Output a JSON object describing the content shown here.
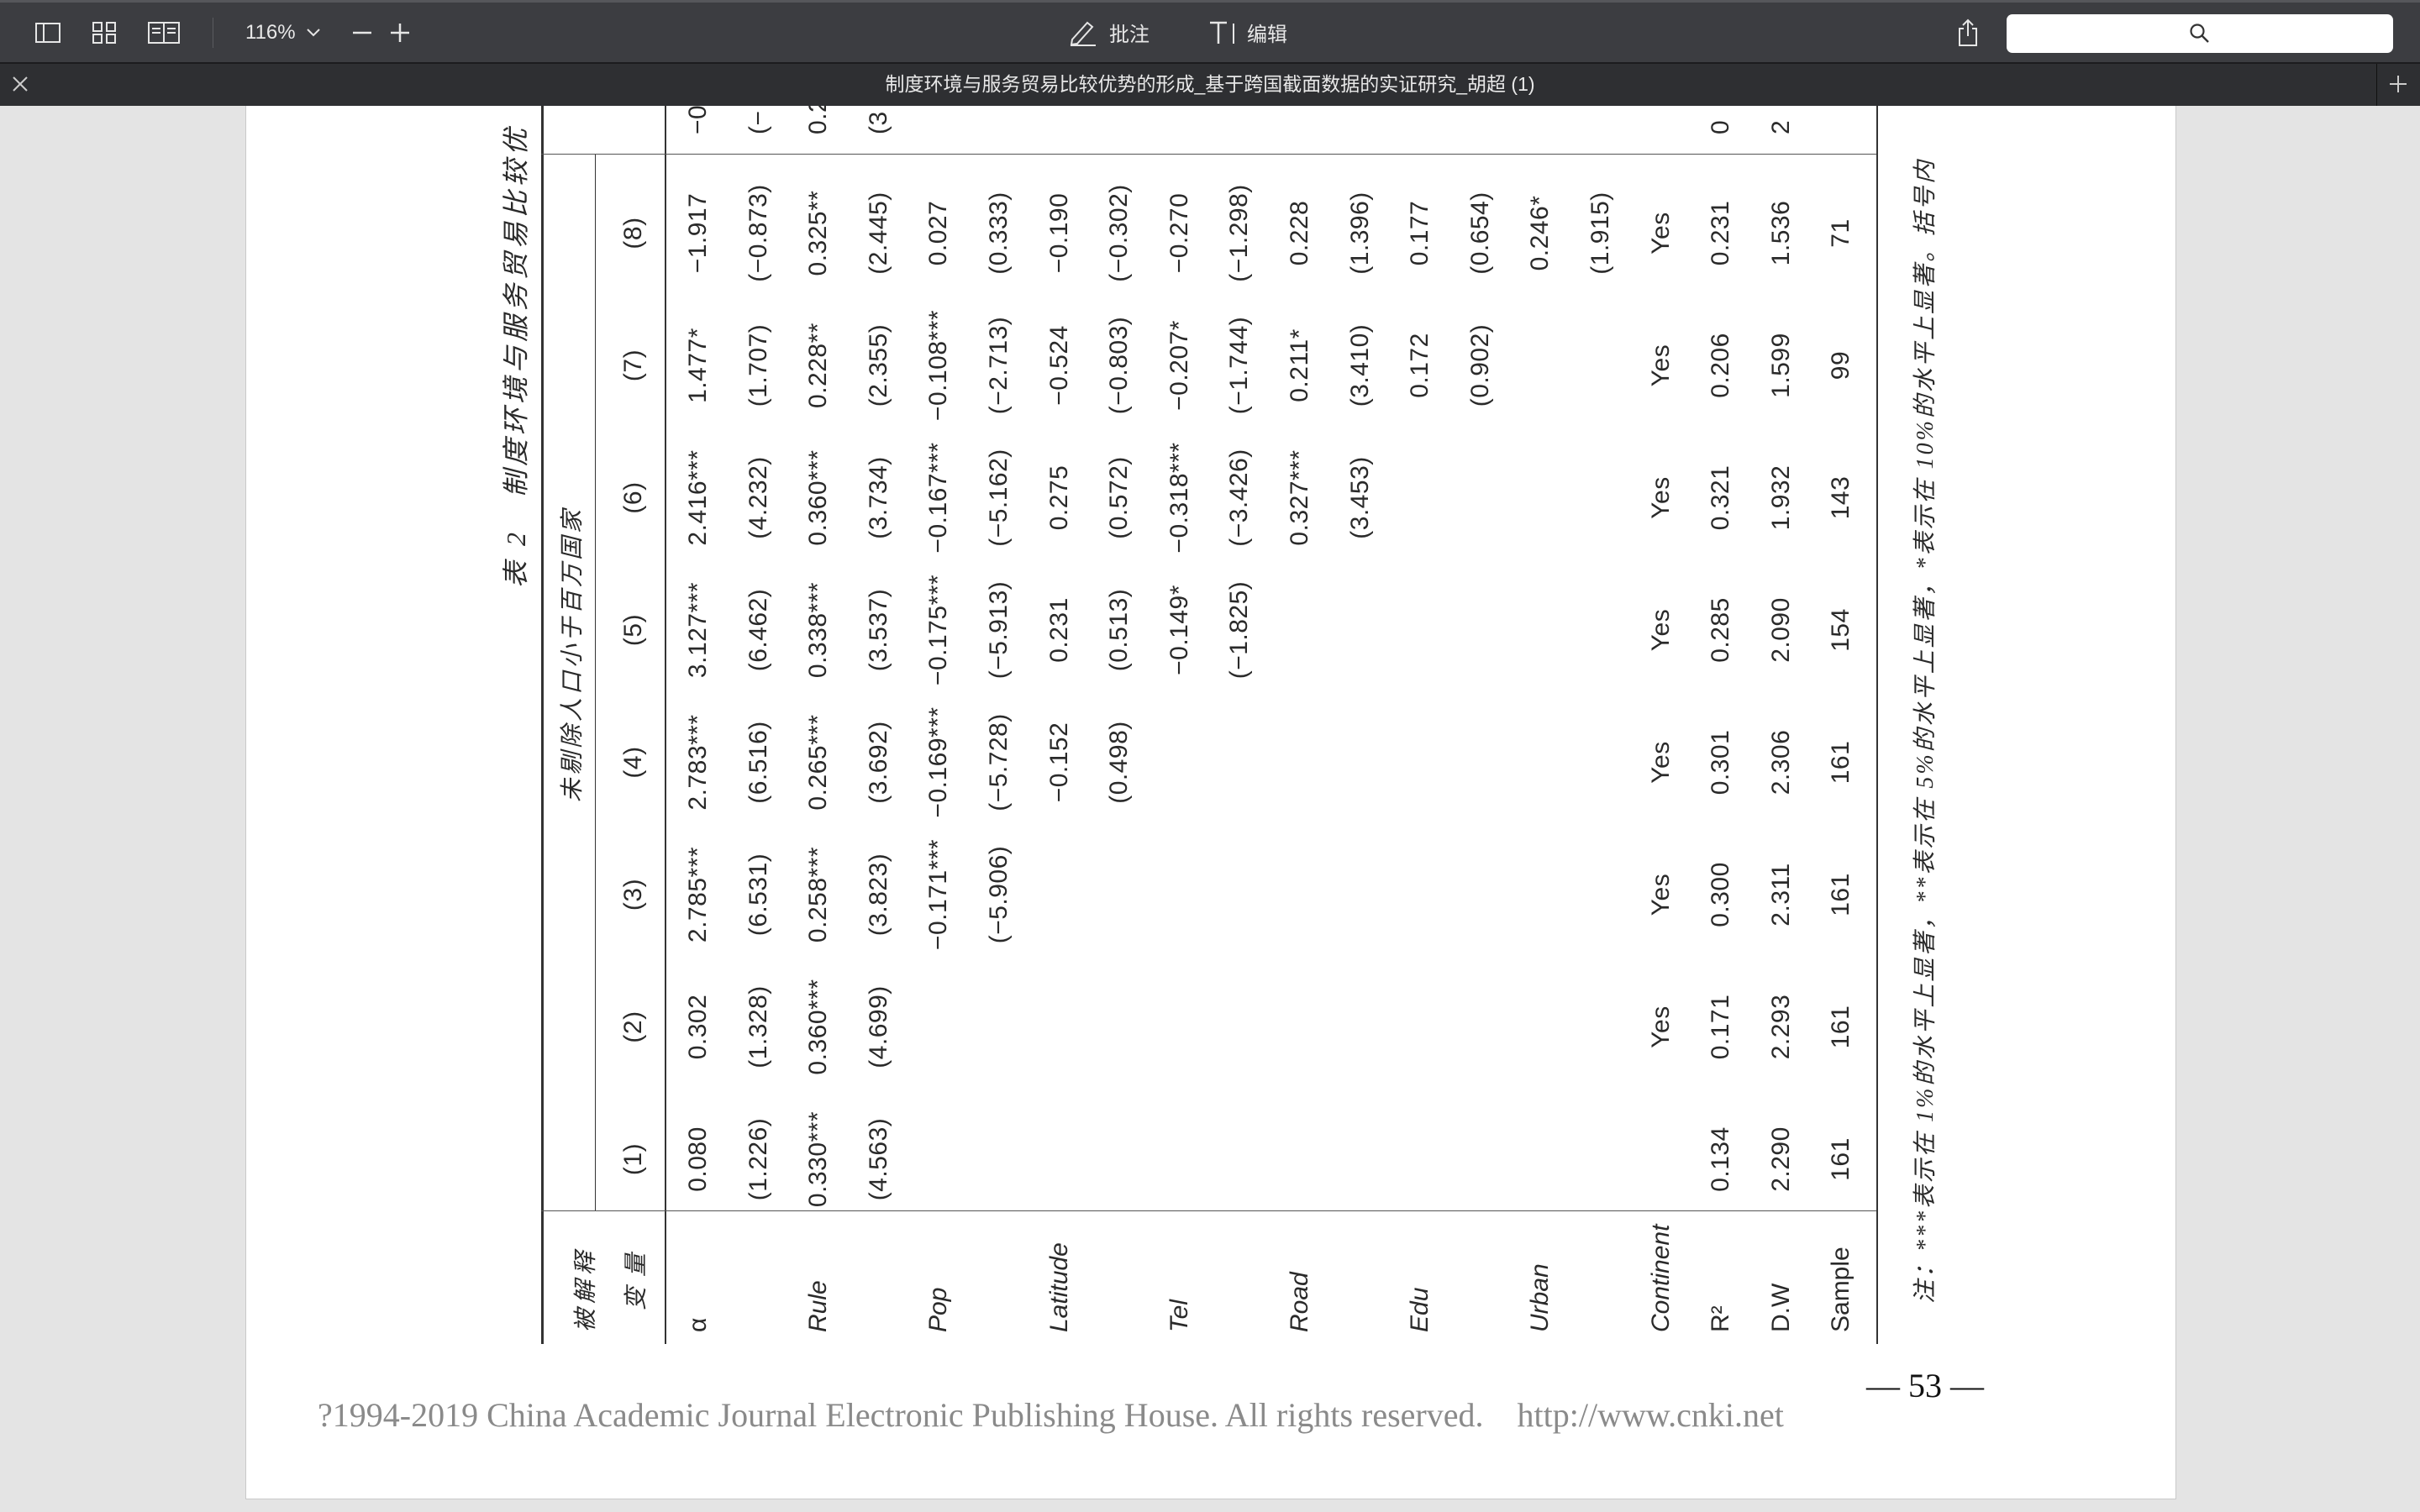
{
  "toolbar": {
    "zoom_level": "116%",
    "annotate_label": "批注",
    "edit_label": "编辑",
    "search_placeholder": ""
  },
  "tab": {
    "title": "制度环境与服务贸易比较优势的形成_基于跨国截面数据的实证研究_胡超 (1)"
  },
  "document": {
    "table_title": "表 2　制度环境与服务贸易比较优",
    "subheader": "未剔除人口小于百万国家",
    "label_header_line1": "被解释",
    "label_header_line2": "变量",
    "columns": [
      "(1)",
      "(2)",
      "(3)",
      "(4)",
      "(5)",
      "(6)",
      "(7)",
      "(8)"
    ],
    "rows": [
      {
        "label": "α",
        "italic": false,
        "cells": [
          "0.080",
          "0.302",
          "2.785***",
          "2.783***",
          "3.127***",
          "2.416***",
          "1.477*",
          "−1.917"
        ]
      },
      {
        "label": "",
        "italic": false,
        "cells": [
          "(1.226)",
          "(1.328)",
          "(6.531)",
          "(6.516)",
          "(6.462)",
          "(4.232)",
          "(1.707)",
          "(−0.873)"
        ]
      },
      {
        "label": "Rule",
        "italic": true,
        "cells": [
          "0.330***",
          "0.360***",
          "0.258***",
          "0.265***",
          "0.338***",
          "0.360***",
          "0.228**",
          "0.325**"
        ]
      },
      {
        "label": "",
        "italic": false,
        "cells": [
          "(4.563)",
          "(4.699)",
          "(3.823)",
          "(3.692)",
          "(3.537)",
          "(3.734)",
          "(2.355)",
          "(2.445)"
        ]
      },
      {
        "label": "Pop",
        "italic": true,
        "cells": [
          "",
          "",
          "−0.171***",
          "−0.169***",
          "−0.175***",
          "−0.167***",
          "−0.108***",
          "0.027"
        ]
      },
      {
        "label": "",
        "italic": false,
        "cells": [
          "",
          "",
          "(−5.906)",
          "(−5.728)",
          "(−5.913)",
          "(−5.162)",
          "(−2.713)",
          "(0.333)"
        ]
      },
      {
        "label": "Latitude",
        "italic": true,
        "cells": [
          "",
          "",
          "",
          "−0.152",
          "0.231",
          "0.275",
          "−0.524",
          "−0.190"
        ]
      },
      {
        "label": "",
        "italic": false,
        "cells": [
          "",
          "",
          "",
          "(0.498)",
          "(0.513)",
          "(0.572)",
          "(−0.803)",
          "(−0.302)"
        ]
      },
      {
        "label": "Tel",
        "italic": true,
        "cells": [
          "",
          "",
          "",
          "",
          "−0.149*",
          "−0.318***",
          "−0.207*",
          "−0.270"
        ]
      },
      {
        "label": "",
        "italic": false,
        "cells": [
          "",
          "",
          "",
          "",
          "(−1.825)",
          "(−3.426)",
          "(−1.744)",
          "(−1.298)"
        ]
      },
      {
        "label": "Road",
        "italic": true,
        "cells": [
          "",
          "",
          "",
          "",
          "",
          "0.327***",
          "0.211*",
          "0.228"
        ]
      },
      {
        "label": "",
        "italic": false,
        "cells": [
          "",
          "",
          "",
          "",
          "",
          "(3.453)",
          "(3.410)",
          "(1.396)"
        ]
      },
      {
        "label": "Edu",
        "italic": true,
        "cells": [
          "",
          "",
          "",
          "",
          "",
          "",
          "0.172",
          "0.177"
        ]
      },
      {
        "label": "",
        "italic": false,
        "cells": [
          "",
          "",
          "",
          "",
          "",
          "",
          "(0.902)",
          "(0.654)"
        ]
      },
      {
        "label": "Urban",
        "italic": true,
        "cells": [
          "",
          "",
          "",
          "",
          "",
          "",
          "",
          "0.246*"
        ]
      },
      {
        "label": "",
        "italic": false,
        "cells": [
          "",
          "",
          "",
          "",
          "",
          "",
          "",
          "(1.915)"
        ]
      },
      {
        "label": "Continent",
        "italic": true,
        "cells": [
          "",
          "Yes",
          "Yes",
          "Yes",
          "Yes",
          "Yes",
          "Yes",
          "Yes"
        ]
      },
      {
        "label": "R²",
        "italic": false,
        "cells": [
          "0.134",
          "0.171",
          "0.300",
          "0.301",
          "0.285",
          "0.321",
          "0.206",
          "0.231"
        ]
      },
      {
        "label": "D.W",
        "italic": false,
        "cells": [
          "2.290",
          "2.293",
          "2.311",
          "2.306",
          "2.090",
          "1.932",
          "1.599",
          "1.536"
        ]
      },
      {
        "label": "Sample",
        "italic": false,
        "cells": [
          "161",
          "161",
          "161",
          "161",
          "154",
          "143",
          "99",
          "71"
        ]
      }
    ],
    "partial_column": [
      "−0",
      "(−",
      "0.2",
      "(3",
      "",
      "",
      "",
      "",
      "",
      "",
      "",
      "",
      "",
      "",
      "",
      "",
      "",
      "0",
      "2",
      ""
    ],
    "note": "注：***表示在 1%的水平上显著，**表示在 5%的水平上显著，*表示在 10%的水平上显著。括号内",
    "page_number": "— 53 —",
    "footer": "?1994-2019 China Academic Journal Electronic Publishing House. All rights reserved.    http://www.cnki.net"
  },
  "colors": {
    "toolbar_bg": "#3c3d41",
    "tabbar_bg": "#2e2f32",
    "canvas_bg": "#e4e4e4"
  }
}
